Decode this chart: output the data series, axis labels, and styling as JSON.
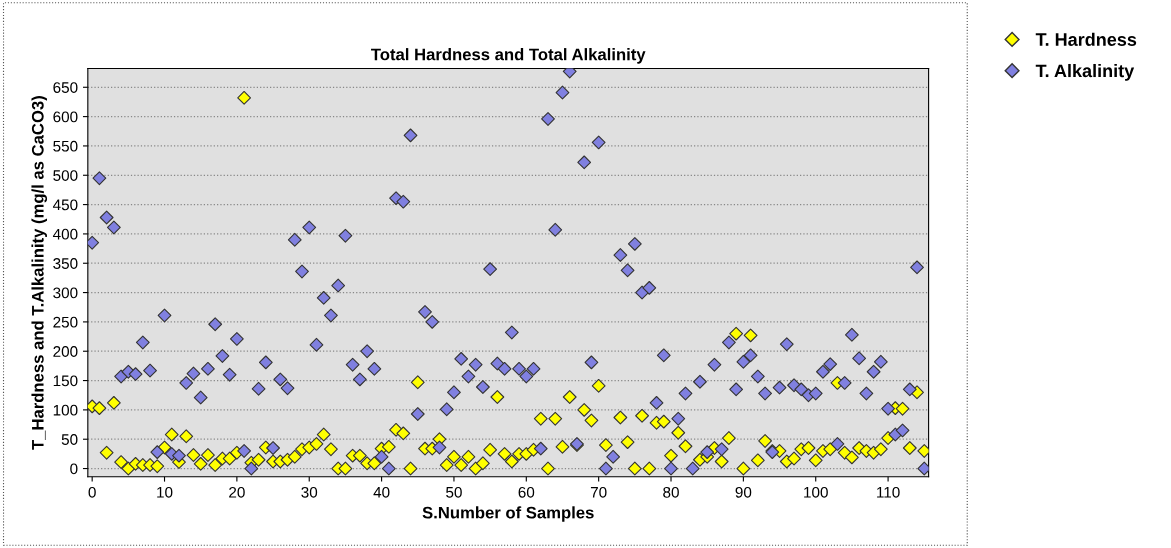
{
  "chart_data": {
    "type": "scatter",
    "title": "Total Hardness and Total Alkalinity",
    "xlabel": "S.Number of Samples",
    "ylabel": "T_Hardness and T.Alkalinity (mg/l as CaCO3)",
    "x": [
      0,
      1,
      2,
      3,
      4,
      5,
      6,
      7,
      8,
      9,
      10,
      11,
      12,
      13,
      14,
      15,
      16,
      17,
      18,
      19,
      20,
      21,
      22,
      23,
      24,
      25,
      26,
      27,
      28,
      29,
      30,
      31,
      32,
      33,
      34,
      35,
      36,
      37,
      38,
      39,
      40,
      41,
      42,
      43,
      44,
      45,
      46,
      47,
      48,
      49,
      50,
      51,
      52,
      53,
      54,
      55,
      56,
      57,
      58,
      59,
      60,
      61,
      62,
      63,
      64,
      65,
      66,
      67,
      68,
      69,
      70,
      71,
      72,
      73,
      74,
      75,
      76,
      77,
      78,
      79,
      80,
      81,
      82,
      83,
      84,
      85,
      86,
      87,
      88,
      89,
      90,
      91,
      92,
      93,
      94,
      95,
      96,
      97,
      98,
      99,
      100,
      101,
      102,
      103,
      104,
      105,
      106,
      107,
      108,
      109,
      110,
      111,
      112,
      113,
      114,
      115
    ],
    "series": [
      {
        "name": "T. Hardness",
        "color": "#ffff00",
        "values": [
          106,
          103,
          27,
          112,
          11,
          0,
          8,
          6,
          6,
          4,
          36,
          58,
          11,
          55,
          23,
          8,
          23,
          6,
          17,
          17,
          27,
          632,
          10,
          15,
          36,
          12,
          12,
          15,
          20,
          33,
          36,
          42,
          58,
          33,
          0,
          0,
          22,
          22,
          9,
          9,
          34,
          37,
          66,
          60,
          0,
          147,
          34,
          34,
          50,
          6,
          20,
          6,
          20,
          0,
          9,
          32,
          122,
          25,
          12,
          25,
          25,
          32,
          85,
          0,
          85,
          37,
          122,
          40,
          100,
          82,
          141,
          40,
          null,
          87,
          45,
          0,
          90,
          0,
          78,
          80,
          22,
          61,
          38,
          null,
          15,
          20,
          35,
          12,
          52,
          230,
          0,
          227,
          14,
          47,
          30,
          30,
          12,
          17,
          33,
          35,
          14,
          30,
          33,
          146,
          27,
          19,
          35,
          30,
          27,
          33,
          52,
          103,
          102,
          35,
          130,
          30
        ]
      },
      {
        "name": "T. Alkalinity",
        "color": "#8080e0",
        "values": [
          385,
          495,
          428,
          411,
          157,
          165,
          161,
          215,
          167,
          28,
          261,
          25,
          22,
          146,
          162,
          121,
          170,
          246,
          192,
          160,
          221,
          30,
          0,
          136,
          181,
          35,
          152,
          137,
          390,
          336,
          411,
          211,
          291,
          261,
          312,
          397,
          177,
          152,
          200,
          170,
          20,
          0,
          461,
          455,
          568,
          93,
          267,
          250,
          36,
          101,
          130,
          187,
          157,
          177,
          139,
          340,
          179,
          170,
          232,
          170,
          157,
          170,
          34,
          596,
          407,
          641,
          677,
          42,
          522,
          181,
          556,
          0,
          20,
          364,
          338,
          383,
          300,
          308,
          112,
          193,
          0,
          85,
          128,
          0,
          148,
          28,
          177,
          33,
          215,
          135,
          182,
          193,
          157,
          128,
          28,
          138,
          212,
          142,
          135,
          125,
          128,
          165,
          178,
          42,
          146,
          228,
          188,
          128,
          165,
          182,
          102,
          58,
          65,
          135,
          343,
          0
        ]
      }
    ],
    "xlim": [
      -0.6,
      115.6
    ],
    "ylim": [
      -14,
      682
    ],
    "xticks": [
      0,
      10,
      20,
      30,
      40,
      50,
      60,
      70,
      80,
      90,
      100,
      110
    ],
    "yticks": [
      0,
      50,
      100,
      150,
      200,
      250,
      300,
      350,
      400,
      450,
      500,
      550,
      600,
      650
    ],
    "grid": "y",
    "legend": "right",
    "marker": "diamond"
  }
}
